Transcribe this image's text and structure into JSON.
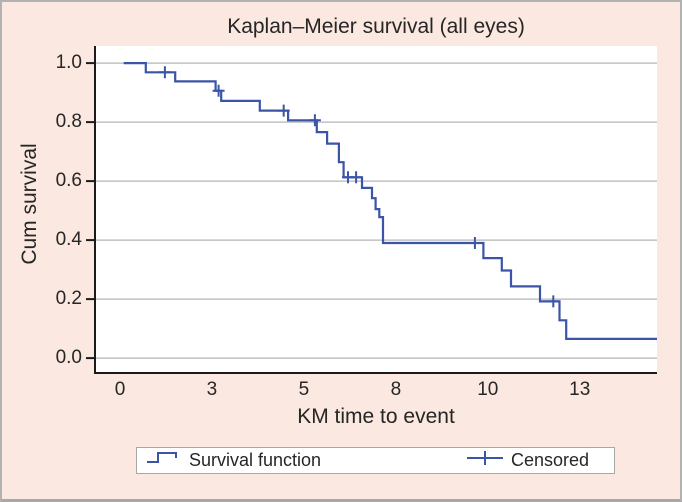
{
  "chart_data": {
    "type": "line",
    "variant": "kaplan_meier_step",
    "title": "Kaplan–Meier survival (all eyes)",
    "xlabel": "KM time to event",
    "ylabel": "Cum survival",
    "xlim": [
      -0.68,
      14.6
    ],
    "ylim": [
      -0.054,
      1.058
    ],
    "grid": "horizontal-only",
    "x_ticks": [
      {
        "value": 0,
        "label": "0"
      },
      {
        "value": 2.5,
        "label": "3"
      },
      {
        "value": 5,
        "label": "5"
      },
      {
        "value": 7.5,
        "label": "8"
      },
      {
        "value": 10,
        "label": "10"
      },
      {
        "value": 12.5,
        "label": "13"
      }
    ],
    "y_ticks": [
      {
        "value": 0.0,
        "label": "0.0"
      },
      {
        "value": 0.2,
        "label": "0.2"
      },
      {
        "value": 0.4,
        "label": "0.4"
      },
      {
        "value": 0.6,
        "label": "0.6"
      },
      {
        "value": 0.8,
        "label": "0.8"
      },
      {
        "value": 1.0,
        "label": "1.0"
      }
    ],
    "series": [
      {
        "name": "Survival function",
        "type": "step",
        "color": "#3a55a7",
        "points": [
          [
            0.1,
            1.0
          ],
          [
            0.7,
            0.969
          ],
          [
            1.5,
            0.938
          ],
          [
            2.6,
            0.906
          ],
          [
            2.75,
            0.872
          ],
          [
            3.8,
            0.839
          ],
          [
            4.57,
            0.806
          ],
          [
            5.35,
            0.766
          ],
          [
            5.63,
            0.727
          ],
          [
            5.95,
            0.664
          ],
          [
            6.08,
            0.613
          ],
          [
            6.58,
            0.577
          ],
          [
            6.85,
            0.542
          ],
          [
            6.95,
            0.505
          ],
          [
            7.05,
            0.478
          ],
          [
            7.15,
            0.39
          ],
          [
            9.88,
            0.339
          ],
          [
            10.38,
            0.297
          ],
          [
            10.63,
            0.243
          ],
          [
            11.42,
            0.192
          ],
          [
            11.95,
            0.128
          ],
          [
            12.13,
            0.065
          ],
          [
            14.6,
            0.065
          ]
        ]
      }
    ],
    "censored": {
      "name": "Censored",
      "color": "#3a55a7",
      "points": [
        [
          1.22,
          0.969
        ],
        [
          2.68,
          0.906
        ],
        [
          4.45,
          0.839
        ],
        [
          5.3,
          0.806
        ],
        [
          6.2,
          0.613
        ],
        [
          6.42,
          0.613
        ],
        [
          9.65,
          0.39
        ],
        [
          11.78,
          0.192
        ]
      ]
    },
    "legend": {
      "position": "bottom",
      "items": [
        {
          "label": "Survival function",
          "glyph": "step-line"
        },
        {
          "label": "Censored",
          "glyph": "plus-tick"
        }
      ]
    },
    "colors": {
      "curve": "#3a55a7",
      "grid": "#b5b5b5",
      "axis": "#1b1b1b",
      "text": "#262626",
      "plot_background": "#ffffff",
      "figure_background": "#fbe8e0",
      "figure_border": "#b2b2b2",
      "legend_border": "#a8a8a8"
    }
  }
}
